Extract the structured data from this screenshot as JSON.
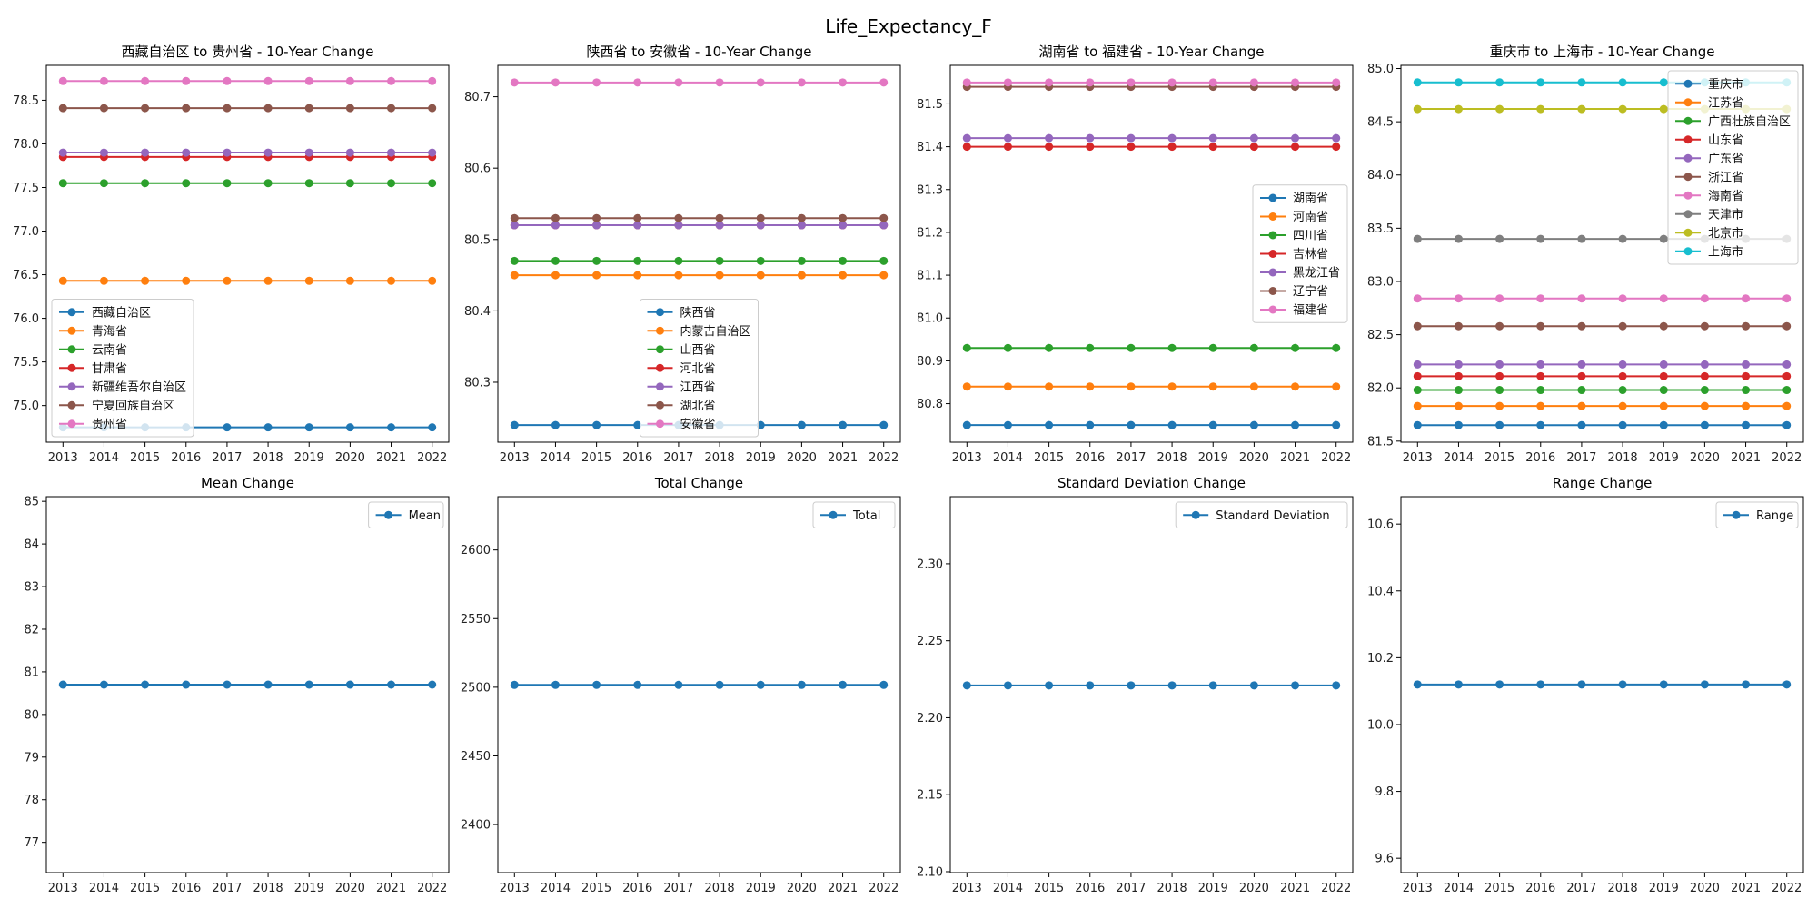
{
  "figure_title": "Life_Expectancy_F",
  "colors": [
    "#1f77b4",
    "#ff7f0e",
    "#2ca02c",
    "#d62728",
    "#9467bd",
    "#8c564b",
    "#e377c2",
    "#7f7f7f",
    "#bcbd22",
    "#17becf"
  ],
  "chart_data": [
    {
      "type": "line",
      "title": "西藏自治区 to 贵州省 - 10-Year Change",
      "x": [
        2013,
        2014,
        2015,
        2016,
        2017,
        2018,
        2019,
        2020,
        2021,
        2022
      ],
      "ylim": [
        74.58,
        78.9
      ],
      "yticks": [
        75.0,
        75.5,
        76.0,
        76.5,
        77.0,
        77.5,
        78.0,
        78.5
      ],
      "legend_loc": "lower-left",
      "series": [
        {
          "name": "西藏自治区",
          "values": [
            74.75,
            74.75,
            74.75,
            74.75,
            74.75,
            74.75,
            74.75,
            74.75,
            74.75,
            74.75
          ]
        },
        {
          "name": "青海省",
          "values": [
            76.43,
            76.43,
            76.43,
            76.43,
            76.43,
            76.43,
            76.43,
            76.43,
            76.43,
            76.43
          ]
        },
        {
          "name": "云南省",
          "values": [
            77.55,
            77.55,
            77.55,
            77.55,
            77.55,
            77.55,
            77.55,
            77.55,
            77.55,
            77.55
          ]
        },
        {
          "name": "甘肃省",
          "values": [
            77.85,
            77.85,
            77.85,
            77.85,
            77.85,
            77.85,
            77.85,
            77.85,
            77.85,
            77.85
          ]
        },
        {
          "name": "新疆维吾尔自治区",
          "values": [
            77.9,
            77.9,
            77.9,
            77.9,
            77.9,
            77.9,
            77.9,
            77.9,
            77.9,
            77.9
          ]
        },
        {
          "name": "宁夏回族自治区",
          "values": [
            78.41,
            78.41,
            78.41,
            78.41,
            78.41,
            78.41,
            78.41,
            78.41,
            78.41,
            78.41
          ]
        },
        {
          "name": "贵州省",
          "values": [
            78.72,
            78.72,
            78.72,
            78.72,
            78.72,
            78.72,
            78.72,
            78.72,
            78.72,
            78.72
          ]
        }
      ]
    },
    {
      "type": "line",
      "title": "陕西省 to 安徽省 - 10-Year Change",
      "x": [
        2013,
        2014,
        2015,
        2016,
        2017,
        2018,
        2019,
        2020,
        2021,
        2022
      ],
      "ylim": [
        80.216,
        80.744
      ],
      "yticks": [
        80.3,
        80.4,
        80.5,
        80.6,
        80.7
      ],
      "legend_loc": "lower-center",
      "series": [
        {
          "name": "陕西省",
          "values": [
            80.24,
            80.24,
            80.24,
            80.24,
            80.24,
            80.24,
            80.24,
            80.24,
            80.24,
            80.24
          ]
        },
        {
          "name": "内蒙古自治区",
          "values": [
            80.45,
            80.45,
            80.45,
            80.45,
            80.45,
            80.45,
            80.45,
            80.45,
            80.45,
            80.45
          ]
        },
        {
          "name": "山西省",
          "values": [
            80.47,
            80.47,
            80.47,
            80.47,
            80.47,
            80.47,
            80.47,
            80.47,
            80.47,
            80.47
          ]
        },
        {
          "name": "河北省",
          "values": [
            80.52,
            80.52,
            80.52,
            80.52,
            80.52,
            80.52,
            80.52,
            80.52,
            80.52,
            80.52
          ]
        },
        {
          "name": "江西省",
          "values": [
            80.52,
            80.52,
            80.52,
            80.52,
            80.52,
            80.52,
            80.52,
            80.52,
            80.52,
            80.52
          ]
        },
        {
          "name": "湖北省",
          "values": [
            80.53,
            80.53,
            80.53,
            80.53,
            80.53,
            80.53,
            80.53,
            80.53,
            80.53,
            80.53
          ]
        },
        {
          "name": "安徽省",
          "values": [
            80.72,
            80.72,
            80.72,
            80.72,
            80.72,
            80.72,
            80.72,
            80.72,
            80.72,
            80.72
          ]
        }
      ]
    },
    {
      "type": "line",
      "title": "湖南省 to 福建省 - 10-Year Change",
      "x": [
        2013,
        2014,
        2015,
        2016,
        2017,
        2018,
        2019,
        2020,
        2021,
        2022
      ],
      "ylim": [
        80.71,
        81.59
      ],
      "yticks": [
        80.8,
        80.9,
        81.0,
        81.1,
        81.2,
        81.3,
        81.4,
        81.5
      ],
      "legend_loc": "center-right",
      "series": [
        {
          "name": "湖南省",
          "values": [
            80.75,
            80.75,
            80.75,
            80.75,
            80.75,
            80.75,
            80.75,
            80.75,
            80.75,
            80.75
          ]
        },
        {
          "name": "河南省",
          "values": [
            80.84,
            80.84,
            80.84,
            80.84,
            80.84,
            80.84,
            80.84,
            80.84,
            80.84,
            80.84
          ]
        },
        {
          "name": "四川省",
          "values": [
            80.93,
            80.93,
            80.93,
            80.93,
            80.93,
            80.93,
            80.93,
            80.93,
            80.93,
            80.93
          ]
        },
        {
          "name": "吉林省",
          "values": [
            81.4,
            81.4,
            81.4,
            81.4,
            81.4,
            81.4,
            81.4,
            81.4,
            81.4,
            81.4
          ]
        },
        {
          "name": "黑龙江省",
          "values": [
            81.42,
            81.42,
            81.42,
            81.42,
            81.42,
            81.42,
            81.42,
            81.42,
            81.42,
            81.42
          ]
        },
        {
          "name": "辽宁省",
          "values": [
            81.54,
            81.54,
            81.54,
            81.54,
            81.54,
            81.54,
            81.54,
            81.54,
            81.54,
            81.54
          ]
        },
        {
          "name": "福建省",
          "values": [
            81.55,
            81.55,
            81.55,
            81.55,
            81.55,
            81.55,
            81.55,
            81.55,
            81.55,
            81.55
          ]
        }
      ]
    },
    {
      "type": "line",
      "title": "重庆市 to 上海市 - 10-Year Change",
      "x": [
        2013,
        2014,
        2015,
        2016,
        2017,
        2018,
        2019,
        2020,
        2021,
        2022
      ],
      "ylim": [
        81.49,
        85.03
      ],
      "yticks": [
        81.5,
        82.0,
        82.5,
        83.0,
        83.5,
        84.0,
        84.5,
        85.0
      ],
      "legend_loc": "upper-right",
      "series": [
        {
          "name": "重庆市",
          "values": [
            81.65,
            81.65,
            81.65,
            81.65,
            81.65,
            81.65,
            81.65,
            81.65,
            81.65,
            81.65
          ]
        },
        {
          "name": "江苏省",
          "values": [
            81.83,
            81.83,
            81.83,
            81.83,
            81.83,
            81.83,
            81.83,
            81.83,
            81.83,
            81.83
          ]
        },
        {
          "name": "广西壮族自治区",
          "values": [
            81.98,
            81.98,
            81.98,
            81.98,
            81.98,
            81.98,
            81.98,
            81.98,
            81.98,
            81.98
          ]
        },
        {
          "name": "山东省",
          "values": [
            82.11,
            82.11,
            82.11,
            82.11,
            82.11,
            82.11,
            82.11,
            82.11,
            82.11,
            82.11
          ]
        },
        {
          "name": "广东省",
          "values": [
            82.22,
            82.22,
            82.22,
            82.22,
            82.22,
            82.22,
            82.22,
            82.22,
            82.22,
            82.22
          ]
        },
        {
          "name": "浙江省",
          "values": [
            82.58,
            82.58,
            82.58,
            82.58,
            82.58,
            82.58,
            82.58,
            82.58,
            82.58,
            82.58
          ]
        },
        {
          "name": "海南省",
          "values": [
            82.84,
            82.84,
            82.84,
            82.84,
            82.84,
            82.84,
            82.84,
            82.84,
            82.84,
            82.84
          ]
        },
        {
          "name": "天津市",
          "values": [
            83.4,
            83.4,
            83.4,
            83.4,
            83.4,
            83.4,
            83.4,
            83.4,
            83.4,
            83.4
          ]
        },
        {
          "name": "北京市",
          "values": [
            84.62,
            84.62,
            84.62,
            84.62,
            84.62,
            84.62,
            84.62,
            84.62,
            84.62,
            84.62
          ]
        },
        {
          "name": "上海市",
          "values": [
            84.87,
            84.87,
            84.87,
            84.87,
            84.87,
            84.87,
            84.87,
            84.87,
            84.87,
            84.87
          ]
        }
      ]
    },
    {
      "type": "line",
      "title": "Mean Change",
      "x": [
        2013,
        2014,
        2015,
        2016,
        2017,
        2018,
        2019,
        2020,
        2021,
        2022
      ],
      "ylim": [
        76.29,
        85.11
      ],
      "yticks": [
        77,
        78,
        79,
        80,
        81,
        82,
        83,
        84,
        85
      ],
      "legend_loc": "upper-right",
      "series": [
        {
          "name": "Mean",
          "values": [
            80.7,
            80.7,
            80.7,
            80.7,
            80.7,
            80.7,
            80.7,
            80.7,
            80.7,
            80.7
          ]
        }
      ]
    },
    {
      "type": "line",
      "title": "Total Change",
      "x": [
        2013,
        2014,
        2015,
        2016,
        2017,
        2018,
        2019,
        2020,
        2021,
        2022
      ],
      "ylim": [
        2365.0,
        2638.8
      ],
      "yticks": [
        2400,
        2450,
        2500,
        2550,
        2600
      ],
      "legend_loc": "upper-right",
      "series": [
        {
          "name": "Total",
          "values": [
            2501.7,
            2501.7,
            2501.7,
            2501.7,
            2501.7,
            2501.7,
            2501.7,
            2501.7,
            2501.7,
            2501.7
          ]
        }
      ]
    },
    {
      "type": "line",
      "title": "Standard Deviation Change",
      "x": [
        2013,
        2014,
        2015,
        2016,
        2017,
        2018,
        2019,
        2020,
        2021,
        2022
      ],
      "ylim": [
        2.0994,
        2.3436
      ],
      "yticks": [
        2.1,
        2.15,
        2.2,
        2.25,
        2.3
      ],
      "legend_loc": "upper-right",
      "series": [
        {
          "name": "Standard Deviation",
          "values": [
            2.221,
            2.221,
            2.221,
            2.221,
            2.221,
            2.221,
            2.221,
            2.221,
            2.221,
            2.221
          ]
        }
      ]
    },
    {
      "type": "line",
      "title": "Range Change",
      "x": [
        2013,
        2014,
        2015,
        2016,
        2017,
        2018,
        2019,
        2020,
        2021,
        2022
      ],
      "ylim": [
        9.557,
        10.682
      ],
      "yticks": [
        9.6,
        9.8,
        10.0,
        10.2,
        10.4,
        10.6
      ],
      "legend_loc": "upper-right",
      "series": [
        {
          "name": "Range",
          "values": [
            10.12,
            10.12,
            10.12,
            10.12,
            10.12,
            10.12,
            10.12,
            10.12,
            10.12,
            10.12
          ]
        }
      ]
    }
  ]
}
